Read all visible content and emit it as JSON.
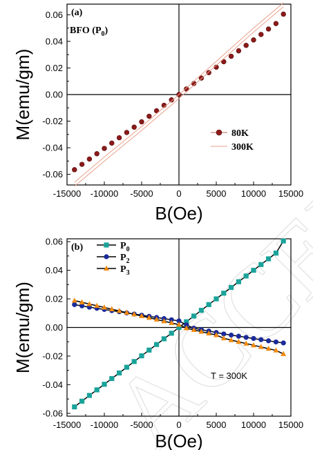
{
  "watermark": "ACCEPTED",
  "chart_data": [
    {
      "type": "line",
      "panel_label": "(a)",
      "panel_title": "BFO (P",
      "panel_title_sub": "0",
      "panel_title_end": ")",
      "xlabel": "B(Oe)",
      "ylabel": "M(emu/gm)",
      "xlim": [
        -15000,
        15000
      ],
      "ylim": [
        -0.068,
        0.068
      ],
      "xticks": [
        -15000,
        -10000,
        -5000,
        0,
        5000,
        10000,
        15000
      ],
      "xtick_labels": [
        "-15000",
        "-10000",
        "-5000",
        "0",
        "5000",
        "10000",
        "15000"
      ],
      "yticks": [
        -0.06,
        -0.04,
        -0.02,
        0.0,
        0.02,
        0.04,
        0.06
      ],
      "ytick_labels": [
        "-0.06",
        "-0.04",
        "-0.02",
        "0.00",
        "0.02",
        "0.04",
        "0.06"
      ],
      "legend_position": "lower-right",
      "series": [
        {
          "name": "80K",
          "color": "#8b1a1a",
          "marker": "sphere",
          "x": [
            -14000,
            -13000,
            -12000,
            -11000,
            -10000,
            -9000,
            -8000,
            -7000,
            -6000,
            -5000,
            -4000,
            -3000,
            -2000,
            -1000,
            0,
            1000,
            2000,
            3000,
            4000,
            5000,
            6000,
            7000,
            8000,
            9000,
            10000,
            11000,
            12000,
            13000,
            14000
          ],
          "y": [
            -0.0565,
            -0.0525,
            -0.0485,
            -0.0445,
            -0.0405,
            -0.0365,
            -0.0325,
            -0.0285,
            -0.0245,
            -0.0205,
            -0.0163,
            -0.0122,
            -0.0081,
            -0.004,
            0.0,
            0.0042,
            0.0083,
            0.0124,
            0.0165,
            0.0206,
            0.0247,
            0.0288,
            0.0329,
            0.037,
            0.0411,
            0.0452,
            0.0493,
            0.0534,
            0.0605
          ]
        },
        {
          "name": "300K",
          "color": "#e8a08a",
          "marker": "line",
          "x": [
            -14000,
            -10000,
            -5000,
            0,
            5000,
            10000,
            14000
          ],
          "y": [
            -0.066,
            -0.047,
            -0.024,
            0.0,
            0.025,
            0.05,
            0.069
          ]
        }
      ]
    },
    {
      "type": "line",
      "panel_label": "(b)",
      "xlabel": "B(Oe)",
      "ylabel": "M(emu/gm)",
      "annotation": "T = 300K",
      "xlim": [
        -15000,
        15000
      ],
      "ylim": [
        -0.062,
        0.062
      ],
      "xticks": [
        -15000,
        -10000,
        -5000,
        0,
        5000,
        10000,
        15000
      ],
      "xtick_labels": [
        "-15000",
        "-10000",
        "-5000",
        "0",
        "5000",
        "10000",
        "15000"
      ],
      "yticks": [
        -0.06,
        -0.04,
        -0.02,
        0.0,
        0.02,
        0.04,
        0.06
      ],
      "ytick_labels": [
        "-0.06",
        "-0.04",
        "-0.02",
        "0.00",
        "0.02",
        "0.04",
        "0.06"
      ],
      "legend_position": "top-left",
      "series": [
        {
          "name": "P",
          "name_sub": "0",
          "color": "#1aa39a",
          "marker": "square",
          "x": [
            -14000,
            -13000,
            -12000,
            -11000,
            -10000,
            -9000,
            -8000,
            -7000,
            -6000,
            -5000,
            -4000,
            -3000,
            -2000,
            -1000,
            0,
            1000,
            2000,
            3000,
            4000,
            5000,
            6000,
            7000,
            8000,
            9000,
            10000,
            11000,
            12000,
            13000,
            14000
          ],
          "y": [
            -0.0555,
            -0.0515,
            -0.0475,
            -0.0436,
            -0.0397,
            -0.0357,
            -0.0318,
            -0.0278,
            -0.0238,
            -0.0198,
            -0.0158,
            -0.0119,
            -0.0079,
            -0.004,
            0.0,
            0.004,
            0.008,
            0.012,
            0.016,
            0.02,
            0.024,
            0.028,
            0.032,
            0.036,
            0.04,
            0.044,
            0.048,
            0.052,
            0.0605
          ]
        },
        {
          "name": "P",
          "name_sub": "2",
          "color": "#1a2a9a",
          "marker": "circle",
          "x": [
            -14000,
            -13000,
            -12000,
            -11000,
            -10000,
            -9000,
            -8000,
            -7000,
            -6000,
            -5000,
            -4000,
            -3000,
            -2000,
            -1000,
            0,
            1000,
            2000,
            3000,
            4000,
            5000,
            6000,
            7000,
            8000,
            9000,
            10000,
            11000,
            12000,
            13000,
            14000
          ],
          "y": [
            0.016,
            0.0151,
            0.0142,
            0.0134,
            0.0126,
            0.0118,
            0.011,
            0.0102,
            0.0094,
            0.0086,
            0.0078,
            0.007,
            0.0062,
            0.0054,
            0.0046,
            0.0018,
            -0.0005,
            -0.0015,
            -0.0025,
            -0.0035,
            -0.0045,
            -0.0053,
            -0.0061,
            -0.0069,
            -0.0077,
            -0.0085,
            -0.0093,
            -0.0101,
            -0.0108
          ]
        },
        {
          "name": "P",
          "name_sub": "3",
          "color": "#f08a10",
          "marker": "triangle",
          "x": [
            -14000,
            -13000,
            -12000,
            -11000,
            -10000,
            -9000,
            -8000,
            -7000,
            -6000,
            -5000,
            -4000,
            -3000,
            -2000,
            -1000,
            0,
            1000,
            2000,
            3000,
            4000,
            5000,
            6000,
            7000,
            8000,
            9000,
            10000,
            11000,
            12000,
            13000,
            14000
          ],
          "y": [
            0.0188,
            0.0176,
            0.0164,
            0.0152,
            0.014,
            0.0128,
            0.0116,
            0.0104,
            0.0092,
            0.008,
            0.0068,
            0.0056,
            0.0044,
            0.0032,
            0.002,
            -0.0005,
            -0.0017,
            -0.0029,
            -0.0041,
            -0.0053,
            -0.0075,
            -0.0088,
            -0.01,
            -0.0112,
            -0.0124,
            -0.0136,
            -0.0148,
            -0.016,
            -0.0185
          ]
        }
      ]
    }
  ]
}
